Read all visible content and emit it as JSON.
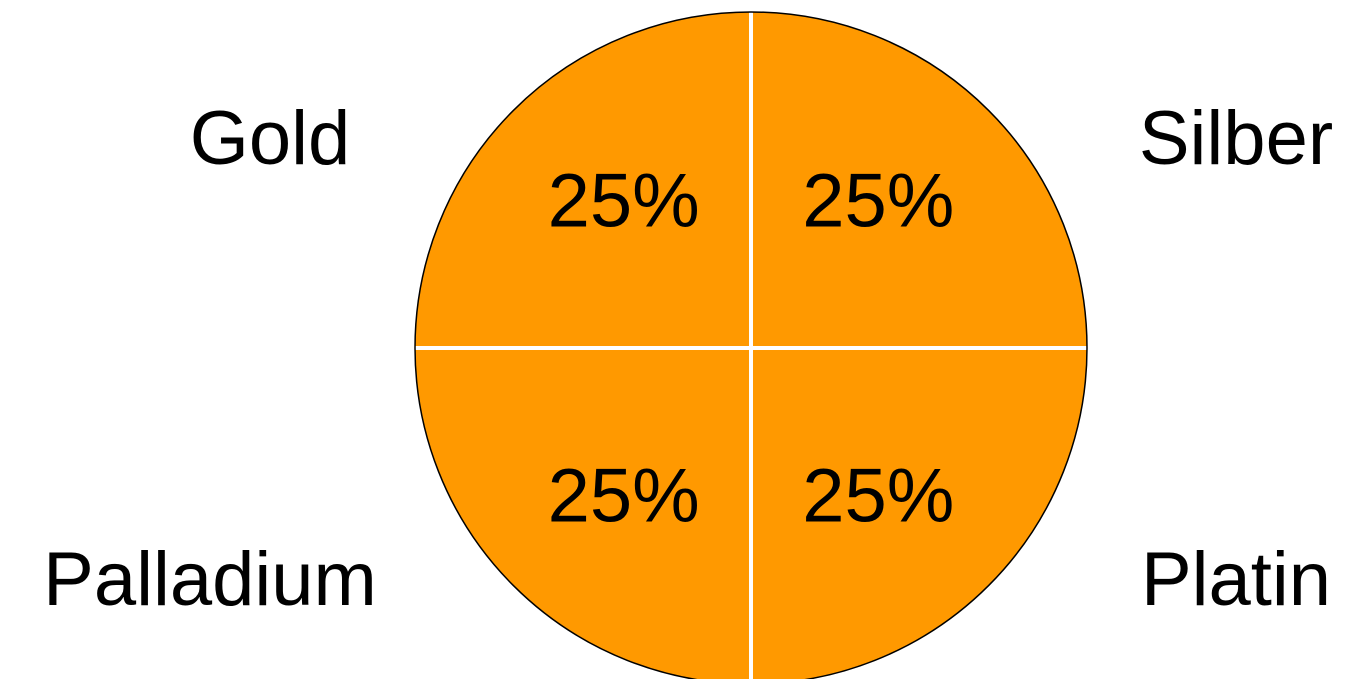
{
  "chart_data": {
    "type": "pie",
    "categories": [
      "Gold",
      "Silber",
      "Platin",
      "Palladium"
    ],
    "values": [
      25,
      25,
      25,
      25
    ],
    "data_labels": [
      "25%",
      "25%",
      "25%",
      "25%"
    ],
    "title": "",
    "legend_placement": "around",
    "colors": {
      "slice": "#FF9900",
      "slice_border": "#FFFFFF",
      "outline": "#000000",
      "text": "#000000",
      "background": "#FFFFFF"
    }
  }
}
